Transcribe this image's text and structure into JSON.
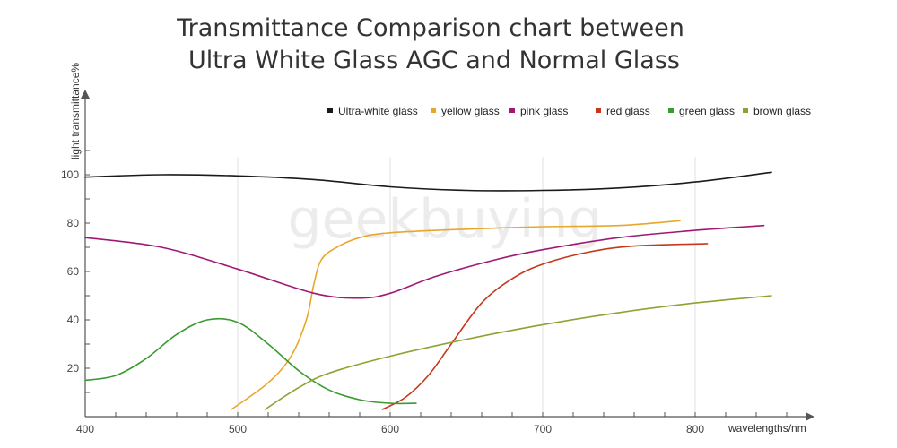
{
  "chart_data": {
    "type": "line",
    "title": [
      "Transmittance Comparison chart between",
      "Ultra White Glass AGC and Normal Glass"
    ],
    "xlabel": "wavelengths/nm",
    "ylabel": "light transmittance%",
    "xlim": [
      400,
      870
    ],
    "ylim": [
      0,
      120
    ],
    "x_ticks": [
      400,
      500,
      600,
      700,
      800
    ],
    "y_ticks": [
      20,
      40,
      60,
      80,
      100
    ],
    "grid": "vertical",
    "legend_position": "top-right",
    "watermark": "geekbuying",
    "series": [
      {
        "name": "Ultra-white glass",
        "color": "#1a1a1a",
        "points": [
          [
            400,
            99
          ],
          [
            450,
            100
          ],
          [
            500,
            99.5
          ],
          [
            550,
            98
          ],
          [
            600,
            95
          ],
          [
            650,
            93.5
          ],
          [
            700,
            93.5
          ],
          [
            750,
            94.5
          ],
          [
            800,
            97
          ],
          [
            850,
            101
          ]
        ]
      },
      {
        "name": "yellow glass",
        "color": "#e8a72c",
        "points": [
          [
            496,
            3
          ],
          [
            520,
            14
          ],
          [
            535,
            25
          ],
          [
            545,
            40
          ],
          [
            550,
            55
          ],
          [
            555,
            65
          ],
          [
            565,
            70
          ],
          [
            580,
            74
          ],
          [
            600,
            76
          ],
          [
            650,
            77.5
          ],
          [
            700,
            78.5
          ],
          [
            750,
            79
          ],
          [
            790,
            81
          ]
        ]
      },
      {
        "name": "pink glass",
        "color": "#a01874",
        "points": [
          [
            400,
            74
          ],
          [
            450,
            70
          ],
          [
            500,
            61
          ],
          [
            550,
            51
          ],
          [
            580,
            49
          ],
          [
            600,
            51
          ],
          [
            630,
            58
          ],
          [
            670,
            65
          ],
          [
            700,
            69
          ],
          [
            750,
            74
          ],
          [
            800,
            77
          ],
          [
            845,
            79
          ]
        ]
      },
      {
        "name": "red glass",
        "color": "#c4391c",
        "points": [
          [
            595,
            3
          ],
          [
            610,
            8
          ],
          [
            625,
            17
          ],
          [
            640,
            30
          ],
          [
            660,
            47
          ],
          [
            680,
            57
          ],
          [
            700,
            63
          ],
          [
            730,
            68
          ],
          [
            760,
            70.5
          ],
          [
            808,
            71.5
          ]
        ]
      },
      {
        "name": "green glass",
        "color": "#3a9a30",
        "points": [
          [
            400,
            15
          ],
          [
            420,
            17
          ],
          [
            440,
            24
          ],
          [
            460,
            34
          ],
          [
            480,
            40
          ],
          [
            500,
            39
          ],
          [
            520,
            30
          ],
          [
            540,
            19
          ],
          [
            560,
            11
          ],
          [
            580,
            7
          ],
          [
            600,
            5.5
          ],
          [
            617,
            5.5
          ]
        ]
      },
      {
        "name": "brown glass",
        "color": "#8aa431",
        "points": [
          [
            518,
            3
          ],
          [
            540,
            12
          ],
          [
            560,
            18
          ],
          [
            600,
            25
          ],
          [
            650,
            32
          ],
          [
            700,
            38
          ],
          [
            750,
            43
          ],
          [
            800,
            47
          ],
          [
            850,
            50
          ]
        ]
      }
    ]
  }
}
